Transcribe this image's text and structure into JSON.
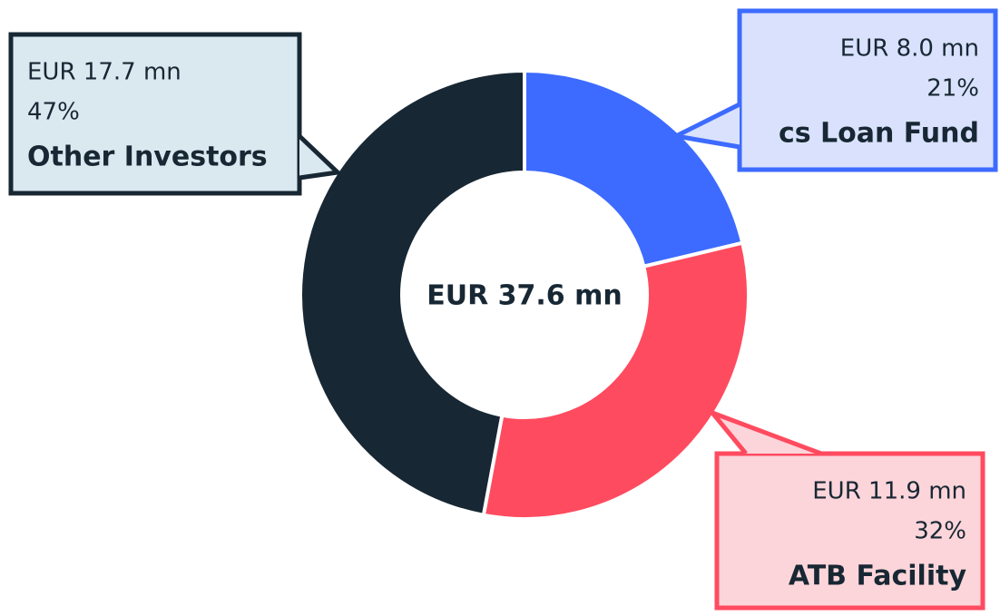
{
  "chart_data": {
    "type": "donut",
    "categories": [
      "cs Loan Fund",
      "ATB Facility",
      "Other Investors"
    ],
    "values": [
      8.0,
      11.9,
      17.7
    ],
    "value_labels": [
      "EUR 8.0 mn",
      "EUR 11.9 mn",
      "EUR 17.7 mn"
    ],
    "percent_labels": [
      "21%",
      "32%",
      "47%"
    ],
    "colors": [
      "#3d6bff",
      "#ff4b5f",
      "#172733"
    ],
    "center_label": "EUR 37.6 mn"
  }
}
